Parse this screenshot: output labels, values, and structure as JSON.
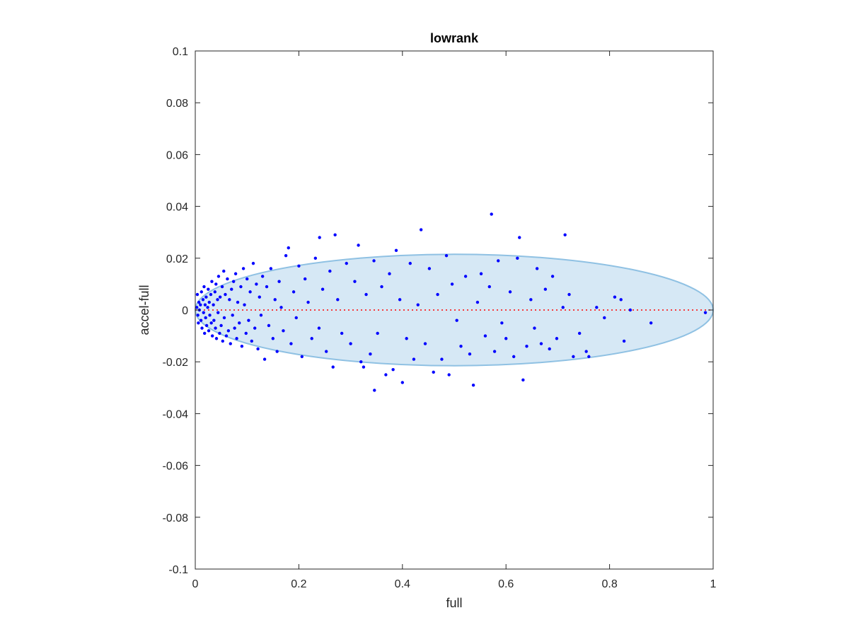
{
  "chart_data": {
    "type": "scatter",
    "title": "lowrank",
    "xlabel": "full",
    "ylabel": "accel-full",
    "xlim": [
      0,
      1
    ],
    "ylim": [
      -0.1,
      0.1
    ],
    "xticks": [
      0,
      0.2,
      0.4,
      0.6,
      0.8,
      1
    ],
    "xtick_labels": [
      "0",
      "0.2",
      "0.4",
      "0.6",
      "0.8",
      "1"
    ],
    "yticks": [
      0.1,
      0.08,
      0.06,
      0.04,
      0.02,
      0,
      -0.02,
      -0.04,
      -0.06,
      -0.08,
      -0.1
    ],
    "ytick_labels": [
      "0.1",
      "0.08",
      "0.06",
      "0.04",
      "0.02",
      "0",
      "-0.02",
      "-0.04",
      "-0.06",
      "-0.08",
      "-0.1"
    ],
    "grid": false,
    "colors": {
      "points": "#0000ff",
      "ellipse_fill": "#d6e8f5",
      "ellipse_edge": "#8fc1e3",
      "zero_line": "#ff0000",
      "axes": "#262626"
    },
    "ellipse": {
      "x_range": [
        0,
        1
      ],
      "y_range": [
        -0.0215,
        0.0215
      ]
    },
    "zero_line": {
      "y": 0,
      "x_range": [
        0,
        1
      ],
      "style": "dotted"
    },
    "points": [
      [
        0.003,
        0.001
      ],
      [
        0.005,
        -0.002
      ],
      [
        0.007,
        0.003
      ],
      [
        0.004,
        0.006
      ],
      [
        0.006,
        -0.005
      ],
      [
        0.008,
        0.0
      ],
      [
        0.01,
        0.002
      ],
      [
        0.011,
        -0.004
      ],
      [
        0.012,
        0.007
      ],
      [
        0.013,
        -0.007
      ],
      [
        0.015,
        0.004
      ],
      [
        0.016,
        -0.001
      ],
      [
        0.017,
        0.009
      ],
      [
        0.018,
        -0.009
      ],
      [
        0.019,
        0.002
      ],
      [
        0.02,
        -0.003
      ],
      [
        0.021,
        0.005
      ],
      [
        0.022,
        -0.006
      ],
      [
        0.024,
        0.001
      ],
      [
        0.025,
        0.008
      ],
      [
        0.026,
        -0.008
      ],
      [
        0.027,
        0.003
      ],
      [
        0.028,
        -0.002
      ],
      [
        0.03,
        0.006
      ],
      [
        0.031,
        -0.005
      ],
      [
        0.032,
        0.011
      ],
      [
        0.033,
        -0.01
      ],
      [
        0.035,
        0.002
      ],
      [
        0.036,
        -0.004
      ],
      [
        0.038,
        0.007
      ],
      [
        0.039,
        -0.007
      ],
      [
        0.04,
        0.01
      ],
      [
        0.041,
        -0.011
      ],
      [
        0.043,
        0.004
      ],
      [
        0.044,
        -0.001
      ],
      [
        0.045,
        0.013
      ],
      [
        0.047,
        -0.009
      ],
      [
        0.048,
        0.005
      ],
      [
        0.05,
        -0.006
      ],
      [
        0.052,
        0.009
      ],
      [
        0.053,
        -0.012
      ],
      [
        0.055,
        0.015
      ],
      [
        0.056,
        -0.003
      ],
      [
        0.058,
        0.006
      ],
      [
        0.06,
        -0.01
      ],
      [
        0.062,
        0.012
      ],
      [
        0.064,
        -0.008
      ],
      [
        0.066,
        0.004
      ],
      [
        0.068,
        -0.013
      ],
      [
        0.07,
        0.008
      ],
      [
        0.072,
        -0.002
      ],
      [
        0.074,
        0.011
      ],
      [
        0.076,
        -0.007
      ],
      [
        0.078,
        0.014
      ],
      [
        0.08,
        -0.011
      ],
      [
        0.082,
        0.003
      ],
      [
        0.085,
        -0.005
      ],
      [
        0.088,
        0.009
      ],
      [
        0.09,
        -0.014
      ],
      [
        0.093,
        0.016
      ],
      [
        0.095,
        0.002
      ],
      [
        0.098,
        -0.009
      ],
      [
        0.1,
        0.012
      ],
      [
        0.103,
        -0.004
      ],
      [
        0.106,
        0.007
      ],
      [
        0.109,
        -0.012
      ],
      [
        0.112,
        0.018
      ],
      [
        0.115,
        -0.007
      ],
      [
        0.118,
        0.01
      ],
      [
        0.121,
        -0.015
      ],
      [
        0.124,
        0.005
      ],
      [
        0.127,
        -0.002
      ],
      [
        0.13,
        0.013
      ],
      [
        0.134,
        -0.019
      ],
      [
        0.138,
        0.009
      ],
      [
        0.142,
        -0.006
      ],
      [
        0.146,
        0.016
      ],
      [
        0.15,
        -0.011
      ],
      [
        0.154,
        0.004
      ],
      [
        0.158,
        -0.016
      ],
      [
        0.162,
        0.011
      ],
      [
        0.166,
        0.001
      ],
      [
        0.17,
        -0.008
      ],
      [
        0.175,
        0.021
      ],
      [
        0.18,
        0.024
      ],
      [
        0.185,
        -0.013
      ],
      [
        0.19,
        0.007
      ],
      [
        0.195,
        -0.003
      ],
      [
        0.2,
        0.017
      ],
      [
        0.206,
        -0.018
      ],
      [
        0.212,
        0.012
      ],
      [
        0.218,
        0.003
      ],
      [
        0.225,
        -0.011
      ],
      [
        0.232,
        0.02
      ],
      [
        0.239,
        -0.007
      ],
      [
        0.24,
        0.028
      ],
      [
        0.246,
        0.008
      ],
      [
        0.253,
        -0.016
      ],
      [
        0.26,
        0.015
      ],
      [
        0.266,
        -0.022
      ],
      [
        0.27,
        0.029
      ],
      [
        0.275,
        0.004
      ],
      [
        0.283,
        -0.009
      ],
      [
        0.292,
        0.018
      ],
      [
        0.3,
        -0.013
      ],
      [
        0.308,
        0.011
      ],
      [
        0.315,
        0.025
      ],
      [
        0.32,
        -0.02
      ],
      [
        0.325,
        -0.022
      ],
      [
        0.33,
        0.006
      ],
      [
        0.338,
        -0.017
      ],
      [
        0.345,
        0.019
      ],
      [
        0.346,
        -0.031
      ],
      [
        0.352,
        -0.009
      ],
      [
        0.36,
        0.009
      ],
      [
        0.368,
        -0.025
      ],
      [
        0.375,
        0.014
      ],
      [
        0.382,
        -0.023
      ],
      [
        0.388,
        0.023
      ],
      [
        0.395,
        0.004
      ],
      [
        0.4,
        -0.028
      ],
      [
        0.408,
        -0.011
      ],
      [
        0.415,
        0.018
      ],
      [
        0.422,
        -0.019
      ],
      [
        0.43,
        0.002
      ],
      [
        0.436,
        0.031
      ],
      [
        0.444,
        -0.013
      ],
      [
        0.452,
        0.016
      ],
      [
        0.46,
        -0.024
      ],
      [
        0.468,
        0.006
      ],
      [
        0.476,
        -0.019
      ],
      [
        0.485,
        0.021
      ],
      [
        0.49,
        -0.025
      ],
      [
        0.496,
        0.01
      ],
      [
        0.505,
        -0.004
      ],
      [
        0.513,
        -0.014
      ],
      [
        0.522,
        0.013
      ],
      [
        0.53,
        -0.017
      ],
      [
        0.537,
        -0.029
      ],
      [
        0.545,
        0.003
      ],
      [
        0.552,
        0.014
      ],
      [
        0.56,
        -0.01
      ],
      [
        0.568,
        0.009
      ],
      [
        0.572,
        0.037
      ],
      [
        0.578,
        -0.016
      ],
      [
        0.585,
        0.019
      ],
      [
        0.592,
        -0.005
      ],
      [
        0.6,
        -0.011
      ],
      [
        0.608,
        0.007
      ],
      [
        0.615,
        -0.018
      ],
      [
        0.622,
        0.02
      ],
      [
        0.626,
        0.028
      ],
      [
        0.633,
        -0.027
      ],
      [
        0.64,
        -0.014
      ],
      [
        0.648,
        0.004
      ],
      [
        0.655,
        -0.007
      ],
      [
        0.66,
        0.016
      ],
      [
        0.668,
        -0.013
      ],
      [
        0.676,
        0.008
      ],
      [
        0.684,
        -0.015
      ],
      [
        0.69,
        0.013
      ],
      [
        0.698,
        -0.011
      ],
      [
        0.71,
        0.001
      ],
      [
        0.714,
        0.029
      ],
      [
        0.722,
        0.006
      ],
      [
        0.73,
        -0.018
      ],
      [
        0.742,
        -0.009
      ],
      [
        0.755,
        -0.016
      ],
      [
        0.76,
        -0.018
      ],
      [
        0.775,
        0.001
      ],
      [
        0.79,
        -0.003
      ],
      [
        0.81,
        0.005
      ],
      [
        0.822,
        0.004
      ],
      [
        0.828,
        -0.012
      ],
      [
        0.84,
        0.0
      ],
      [
        0.88,
        -0.005
      ],
      [
        0.985,
        -0.001
      ]
    ]
  }
}
